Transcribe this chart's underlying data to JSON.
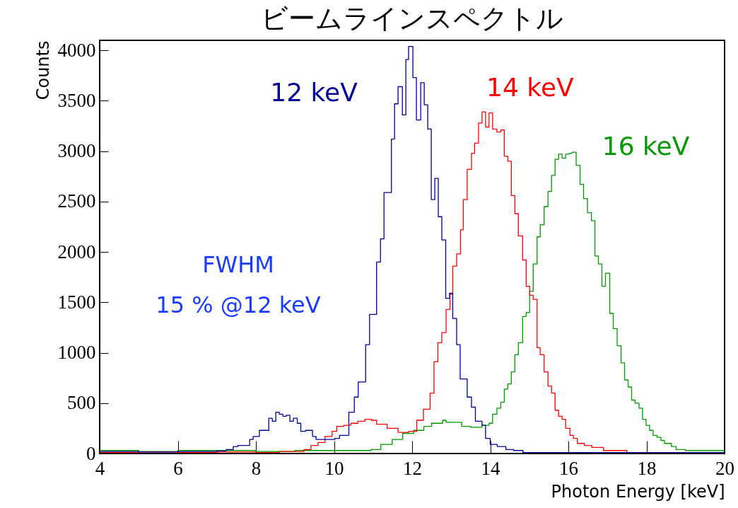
{
  "chart_data": {
    "type": "step",
    "title": "ビームラインスペクトル",
    "xlabel": "Photon Energy [keV]",
    "ylabel": "Counts",
    "xlim": [
      4,
      20
    ],
    "ylim": [
      0,
      4100
    ],
    "xticks": [
      4,
      6,
      8,
      10,
      12,
      14,
      16,
      18,
      20
    ],
    "yticks": [
      0,
      500,
      1000,
      1500,
      2000,
      2500,
      3000,
      3500,
      4000
    ],
    "annotations": [
      "FWHM",
      "15 % @12 keV"
    ],
    "series": [
      {
        "name": "12 keV",
        "color": "#000099",
        "x": [
          4,
          5,
          6,
          6.5,
          7,
          7.24,
          7.42,
          7.54,
          7.84,
          7.93,
          8.09,
          8.33,
          8.42,
          8.51,
          8.6,
          8.69,
          8.78,
          8.87,
          8.96,
          9.06,
          9.15,
          9.27,
          9.45,
          9.54,
          10.02,
          10.14,
          10.38,
          10.52,
          10.62,
          10.81,
          10.91,
          11.09,
          11.19,
          11.28,
          11.47,
          11.55,
          11.64,
          11.75,
          11.84,
          11.91,
          12.02,
          12.11,
          12.22,
          12.31,
          12.4,
          12.49,
          12.58,
          12.67,
          12.76,
          12.86,
          12.96,
          13.04,
          13.14,
          13.23,
          13.41,
          13.52,
          13.62,
          13.79,
          13.88,
          14.0,
          14.18,
          14.4,
          14.6,
          14.84,
          16,
          18,
          20
        ],
        "values": [
          20,
          15,
          20,
          20,
          25,
          40,
          70,
          80,
          140,
          170,
          230,
          350,
          320,
          410,
          390,
          370,
          380,
          320,
          350,
          300,
          220,
          230,
          170,
          140,
          150,
          180,
          410,
          560,
          710,
          1080,
          1380,
          1900,
          2130,
          2590,
          3120,
          3470,
          3640,
          3360,
          3910,
          4040,
          3730,
          3310,
          3680,
          3460,
          3220,
          2520,
          2730,
          2350,
          2120,
          1540,
          1590,
          1340,
          1080,
          740,
          560,
          460,
          320,
          280,
          150,
          90,
          70,
          40,
          30,
          10,
          10,
          10,
          10
        ]
      },
      {
        "name": "14 keV",
        "color": "#ff0000",
        "x": [
          4,
          5,
          6,
          7,
          8,
          8.6,
          9.23,
          9.41,
          9.59,
          9.77,
          9.95,
          10.07,
          10.25,
          10.43,
          10.61,
          10.79,
          10.96,
          11.09,
          11.36,
          11.64,
          11.91,
          12.12,
          12.29,
          12.46,
          12.56,
          12.66,
          12.76,
          12.87,
          12.97,
          13.04,
          13.14,
          13.24,
          13.31,
          13.41,
          13.52,
          13.6,
          13.7,
          13.79,
          13.88,
          13.97,
          14.06,
          14.17,
          14.27,
          14.36,
          14.45,
          14.54,
          14.63,
          14.72,
          14.83,
          14.92,
          15.01,
          15.1,
          15.2,
          15.28,
          15.38,
          15.48,
          15.57,
          15.66,
          15.75,
          15.84,
          15.93,
          16.04,
          16.13,
          16.23,
          16.41,
          16.6,
          16.9,
          17.5,
          18.5,
          20
        ],
        "values": [
          10,
          15,
          10,
          15,
          10,
          20,
          40,
          80,
          110,
          170,
          220,
          270,
          280,
          300,
          320,
          340,
          330,
          290,
          250,
          210,
          220,
          330,
          440,
          600,
          910,
          1100,
          1200,
          1430,
          1580,
          1860,
          1980,
          2220,
          2520,
          2820,
          2980,
          3080,
          3280,
          3390,
          3240,
          3380,
          3220,
          3190,
          3210,
          2950,
          2900,
          2560,
          2380,
          2160,
          1920,
          1660,
          1570,
          1530,
          1050,
          980,
          810,
          670,
          600,
          430,
          370,
          340,
          250,
          180,
          150,
          100,
          80,
          60,
          30,
          10,
          10,
          10
        ]
      },
      {
        "name": "16 keV",
        "color": "#009900",
        "x": [
          4,
          5,
          6,
          7,
          8,
          9,
          10,
          10.95,
          11.2,
          11.49,
          11.76,
          12.04,
          12.3,
          12.5,
          12.78,
          12.87,
          13.27,
          13.5,
          13.79,
          13.97,
          14.06,
          14.17,
          14.27,
          14.36,
          14.45,
          14.54,
          14.63,
          14.72,
          14.83,
          14.92,
          15.01,
          15.1,
          15.2,
          15.28,
          15.38,
          15.48,
          15.57,
          15.66,
          15.75,
          15.84,
          15.93,
          16.02,
          16.1,
          16.2,
          16.3,
          16.39,
          16.49,
          16.59,
          16.68,
          16.77,
          16.86,
          16.95,
          17.06,
          17.15,
          17.25,
          17.35,
          17.44,
          17.53,
          17.62,
          17.71,
          17.81,
          17.9,
          17.99,
          18.08,
          18.17,
          18.27,
          18.37,
          18.46,
          18.64,
          18.76,
          19.0,
          19.5,
          20
        ],
        "values": [
          30,
          20,
          30,
          30,
          20,
          30,
          30,
          40,
          90,
          140,
          200,
          230,
          270,
          300,
          330,
          310,
          270,
          260,
          280,
          300,
          390,
          450,
          510,
          640,
          690,
          810,
          980,
          1100,
          1360,
          1400,
          1610,
          1880,
          2150,
          2270,
          2450,
          2600,
          2760,
          2920,
          2970,
          2930,
          2970,
          2980,
          2990,
          2860,
          2670,
          2530,
          2390,
          2310,
          1960,
          1880,
          1660,
          1790,
          1390,
          1240,
          1070,
          900,
          730,
          660,
          530,
          500,
          450,
          340,
          280,
          230,
          180,
          160,
          130,
          100,
          70,
          40,
          30,
          30,
          20
        ]
      }
    ]
  }
}
